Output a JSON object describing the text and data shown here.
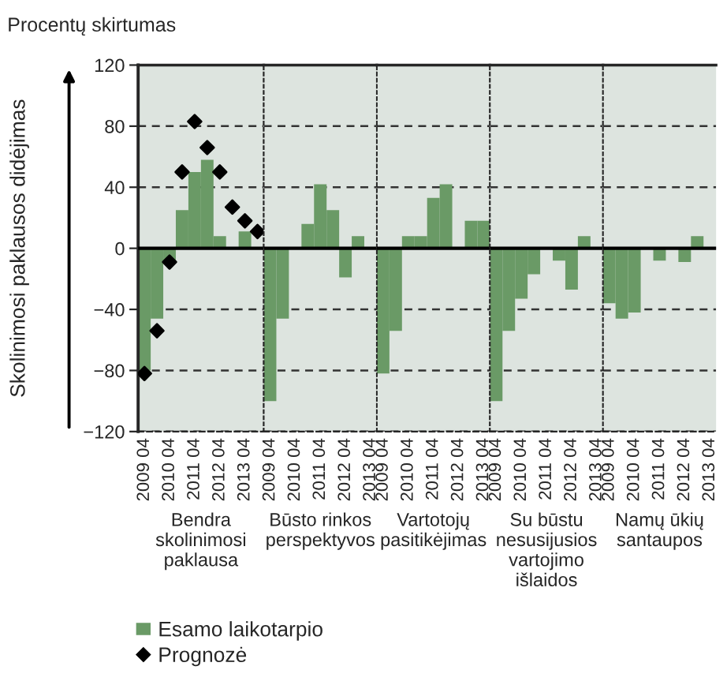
{
  "chart_data": [
    {
      "type": "bar",
      "title": "Procentų skirtumas",
      "ylabel": "Skolinimosi paklausos didėjimas",
      "xlabel": "Bendra\nskolinimosi\npaklausa",
      "categories": [
        "2009 04",
        null,
        "2010 04",
        null,
        "2011 04",
        null,
        "2012 04",
        null,
        "2013 04",
        null
      ],
      "series": [
        {
          "name": "Esamo laikotarpio",
          "color": "#6a9a66",
          "values": [
            -80,
            -46,
            -8,
            25,
            50,
            58,
            8,
            null,
            11,
            null
          ]
        },
        {
          "name": "Prognozė",
          "type": "scatter",
          "color": "#000000",
          "values": [
            -82,
            -54,
            -9,
            50,
            83,
            66,
            50,
            27,
            18,
            11
          ]
        }
      ],
      "marker": "diamond",
      "ylim": [
        -120,
        120
      ],
      "yticks": [
        {
          "value": -120,
          "label": "−120"
        },
        {
          "value": -80,
          "label": "−80"
        },
        {
          "value": -40,
          "label": "−40"
        },
        0,
        40,
        80,
        120
      ],
      "grid": "y",
      "legend": "bottom",
      "ref_lines": [
        {
          "axis": "y",
          "value": 0,
          "color": "#000000"
        }
      ]
    },
    {
      "type": "bar",
      "xlabel": "Būsto rinkos\nperspektyvos",
      "categories": [
        "2009 04",
        null,
        "2010 04",
        null,
        "2011 04",
        null,
        "2012 04",
        null,
        "2013 04"
      ],
      "series": [
        {
          "color": "#6a9a66",
          "values": [
            -100,
            -46,
            null,
            16,
            42,
            25,
            -19,
            8,
            null
          ]
        }
      ],
      "ylim": [
        -120,
        120
      ],
      "yticks": [
        -120,
        -80,
        -40,
        0,
        40,
        80,
        120
      ],
      "grid": "y",
      "tick_labels": "x",
      "ref_lines": [
        {
          "axis": "y",
          "value": 0,
          "color": "#000000"
        }
      ]
    },
    {
      "type": "bar",
      "xlabel": "Vartotojų\npasitikėjimas",
      "categories": [
        "2009 04",
        null,
        "2010 04",
        null,
        "2011 04",
        null,
        "2012 04",
        null,
        "2013 04"
      ],
      "series": [
        {
          "color": "#6a9a66",
          "values": [
            -82,
            -54,
            8,
            8,
            33,
            42,
            null,
            18,
            18
          ]
        }
      ],
      "ylim": [
        -120,
        120
      ],
      "yticks": [
        -120,
        -80,
        -40,
        0,
        40,
        80,
        120
      ],
      "grid": "y",
      "tick_labels": "x",
      "ref_lines": [
        {
          "axis": "y",
          "value": 0,
          "color": "#000000"
        }
      ]
    },
    {
      "type": "bar",
      "xlabel": "Su būstu\nnesusijusios\nvartojimo\nišlaidos",
      "categories": [
        "2009 04",
        null,
        "2010 04",
        null,
        "2011 04",
        null,
        "2012 04",
        null,
        "2013 04"
      ],
      "series": [
        {
          "color": "#6a9a66",
          "values": [
            -100,
            -54,
            -33,
            -17,
            null,
            -8,
            -27,
            8,
            null
          ]
        }
      ],
      "ylim": [
        -120,
        120
      ],
      "yticks": [
        -120,
        -80,
        -40,
        0,
        40,
        80,
        120
      ],
      "grid": "y",
      "tick_labels": "x",
      "ref_lines": [
        {
          "axis": "y",
          "value": 0,
          "color": "#000000"
        }
      ]
    },
    {
      "type": "bar",
      "xlabel": "Namų ūkių\nsantaupos",
      "categories": [
        "2009 04",
        null,
        "2010 04",
        null,
        "2011 04",
        null,
        "2012 04",
        null,
        "2013 04"
      ],
      "series": [
        {
          "color": "#6a9a66",
          "values": [
            -36,
            -46,
            -42,
            null,
            -8,
            null,
            -9,
            8,
            null
          ]
        }
      ],
      "ylim": [
        -120,
        120
      ],
      "yticks": [
        -120,
        -80,
        -40,
        0,
        40,
        80,
        120
      ],
      "grid": "y",
      "tick_labels": "x",
      "ref_lines": [
        {
          "axis": "y",
          "value": 0,
          "color": "#000000"
        }
      ]
    }
  ]
}
